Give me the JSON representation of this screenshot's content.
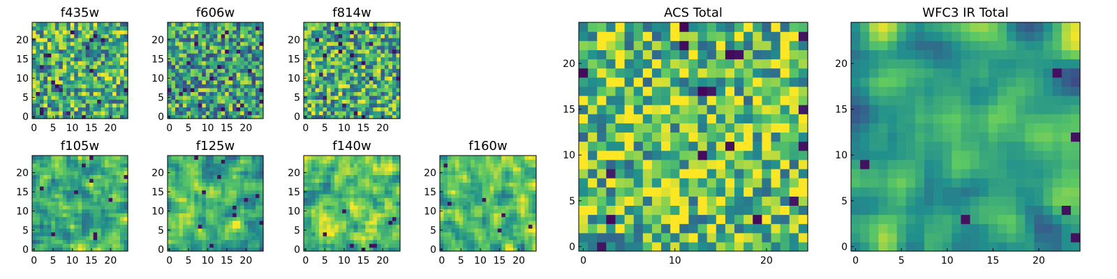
{
  "chart_data": [
    {
      "type": "heatmap",
      "title": "f435w",
      "xlim": [
        0,
        24
      ],
      "ylim": [
        0,
        24
      ],
      "xticks": [
        "0",
        "5",
        "10",
        "15",
        "20"
      ],
      "yticks": [
        "0",
        "5",
        "10",
        "15",
        "20"
      ],
      "grid_size": 25,
      "noise_seed": 11,
      "smooth": 0,
      "bias": 0.0
    },
    {
      "type": "heatmap",
      "title": "f606w",
      "xlim": [
        0,
        24
      ],
      "ylim": [
        0,
        24
      ],
      "xticks": [
        "0",
        "5",
        "10",
        "15",
        "20"
      ],
      "yticks": [
        "0",
        "5",
        "10",
        "15",
        "20"
      ],
      "grid_size": 25,
      "noise_seed": 23,
      "smooth": 0,
      "bias": -0.05
    },
    {
      "type": "heatmap",
      "title": "f814w",
      "xlim": [
        0,
        24
      ],
      "ylim": [
        0,
        24
      ],
      "xticks": [
        "0",
        "5",
        "10",
        "15",
        "20"
      ],
      "yticks": [
        "0",
        "5",
        "10",
        "15",
        "20"
      ],
      "grid_size": 25,
      "noise_seed": 37,
      "smooth": 0,
      "bias": 0.0
    },
    {
      "type": "heatmap",
      "title": "f105w",
      "xlim": [
        0,
        24
      ],
      "ylim": [
        0,
        24
      ],
      "xticks": [
        "0",
        "5",
        "10",
        "15",
        "20"
      ],
      "yticks": [
        "0",
        "5",
        "10",
        "15",
        "20"
      ],
      "grid_size": 25,
      "noise_seed": 41,
      "smooth": 1,
      "bias": 0.05
    },
    {
      "type": "heatmap",
      "title": "f125w",
      "xlim": [
        0,
        24
      ],
      "ylim": [
        0,
        24
      ],
      "xticks": [
        "0",
        "5",
        "10",
        "15",
        "20"
      ],
      "yticks": [
        "0",
        "5",
        "10",
        "15",
        "20"
      ],
      "grid_size": 25,
      "noise_seed": 53,
      "smooth": 1,
      "bias": 0.0
    },
    {
      "type": "heatmap",
      "title": "f140w",
      "xlim": [
        0,
        24
      ],
      "ylim": [
        0,
        24
      ],
      "xticks": [
        "0",
        "5",
        "10",
        "15",
        "20"
      ],
      "yticks": [
        "0",
        "5",
        "10",
        "15",
        "20"
      ],
      "grid_size": 25,
      "noise_seed": 67,
      "smooth": 1,
      "bias": 0.08
    },
    {
      "type": "heatmap",
      "title": "f160w",
      "xlim": [
        0,
        24
      ],
      "ylim": [
        0,
        24
      ],
      "xticks": [
        "0",
        "5",
        "10",
        "15",
        "20"
      ],
      "yticks": [
        "0",
        "5",
        "10",
        "15",
        "20"
      ],
      "grid_size": 25,
      "noise_seed": 79,
      "smooth": 1,
      "bias": 0.05
    },
    {
      "type": "heatmap",
      "title": "ACS Total",
      "xlim": [
        0,
        24
      ],
      "ylim": [
        0,
        24
      ],
      "xticks": [
        "0",
        "10",
        "20"
      ],
      "yticks": [
        "0",
        "5",
        "10",
        "15",
        "20"
      ],
      "grid_size": 25,
      "noise_seed": 97,
      "smooth": 0,
      "bias": 0.08
    },
    {
      "type": "heatmap",
      "title": "WFC3 IR Total",
      "xlim": [
        0,
        24
      ],
      "ylim": [
        0,
        24
      ],
      "xticks": [
        "0",
        "5",
        "10",
        "15",
        "20"
      ],
      "yticks": [
        "0",
        "5",
        "10",
        "15",
        "20"
      ],
      "grid_size": 25,
      "noise_seed": 113,
      "smooth": 2,
      "bias": -0.02
    }
  ],
  "colormap": [
    "#440154",
    "#3b528b",
    "#21908d",
    "#5dc963",
    "#fde725"
  ]
}
